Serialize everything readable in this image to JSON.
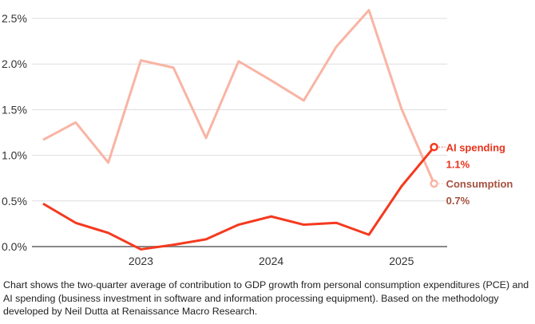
{
  "chart_data": {
    "type": "line",
    "x": [
      "2022 Q2",
      "2022 Q3",
      "2022 Q4",
      "2023 Q1",
      "2023 Q2",
      "2023 Q3",
      "2023 Q4",
      "2024 Q1",
      "2024 Q2",
      "2024 Q3",
      "2024 Q4",
      "2025 Q1",
      "2025 Q2"
    ],
    "x_tick_labels": [
      "2023",
      "2024",
      "2025"
    ],
    "y_tick_labels": [
      "0.0%",
      "0.5%",
      "1.0%",
      "1.5%",
      "2.0%",
      "2.5%"
    ],
    "ylim": [
      0,
      2.5
    ],
    "grid": true,
    "series": [
      {
        "name": "Consumption",
        "end_label": "0.7%",
        "color": "#f9b4a4",
        "label_color": "#a5513f",
        "values": [
          1.17,
          1.36,
          0.92,
          2.04,
          1.96,
          1.19,
          2.03,
          1.82,
          1.6,
          2.19,
          2.59,
          1.51,
          0.69
        ]
      },
      {
        "name": "AI spending",
        "end_label": "1.1%",
        "color": "#f5391e",
        "label_color": "#e8321a",
        "values": [
          0.47,
          0.26,
          0.15,
          -0.03,
          0.02,
          0.08,
          0.24,
          0.33,
          0.24,
          0.26,
          0.13,
          0.66,
          1.09
        ]
      }
    ]
  },
  "caption": "Chart shows the two-quarter average of contribution to GDP growth from personal consumption expenditures (PCE) and AI spending (business investment in software and information processing equipment). Based on the methodology developed by Neil Dutta at Renaissance Macro Research."
}
